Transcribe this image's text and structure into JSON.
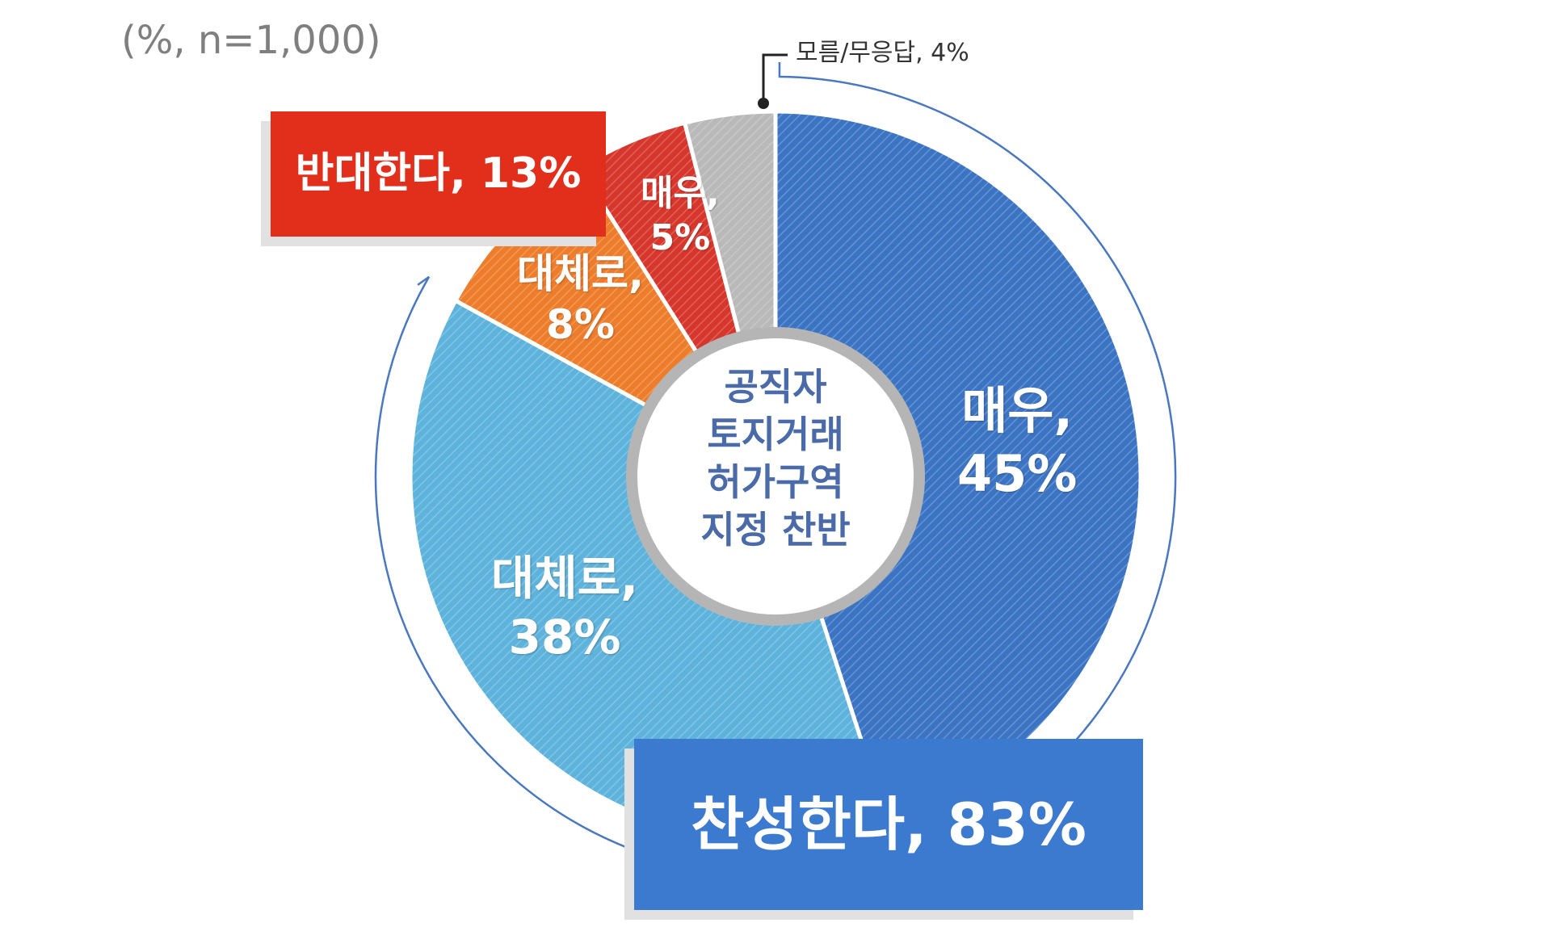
{
  "note": "(%, n=1,000)",
  "center_title": [
    "공직자",
    "토지거래",
    "허가구역",
    "지정 찬반"
  ],
  "callouts": {
    "oppose": "반대한다, 13%",
    "support": "찬성한다, 83%",
    "dont_know": "모름/무응답, 4%"
  },
  "slice_labels": {
    "strong_support": [
      "매우,",
      "45%"
    ],
    "somewhat_support": [
      "대체로,",
      "38%"
    ],
    "somewhat_oppose": [
      "대체로,",
      "8%"
    ],
    "strong_oppose": [
      "매우,",
      "5%"
    ]
  },
  "chart_data": {
    "type": "pie",
    "donut": true,
    "n": 1000,
    "unit": "%",
    "slices": [
      {
        "label": "매우",
        "group": "찬성한다",
        "value": 45,
        "color": "#3c74c4"
      },
      {
        "label": "대체로",
        "group": "찬성한다",
        "value": 38,
        "color": "#5eb3dc"
      },
      {
        "label": "대체로",
        "group": "반대한다",
        "value": 8,
        "color": "#ee7d2b"
      },
      {
        "label": "매우",
        "group": "반대한다",
        "value": 5,
        "color": "#d6362b"
      },
      {
        "label": "모름/무응답",
        "group": "",
        "value": 4,
        "color": "#b9b9b9"
      }
    ],
    "groups": [
      {
        "label": "찬성한다",
        "value": 83,
        "color": "#3c7ad0"
      },
      {
        "label": "반대한다",
        "value": 13,
        "color": "#e12f1c"
      }
    ]
  }
}
